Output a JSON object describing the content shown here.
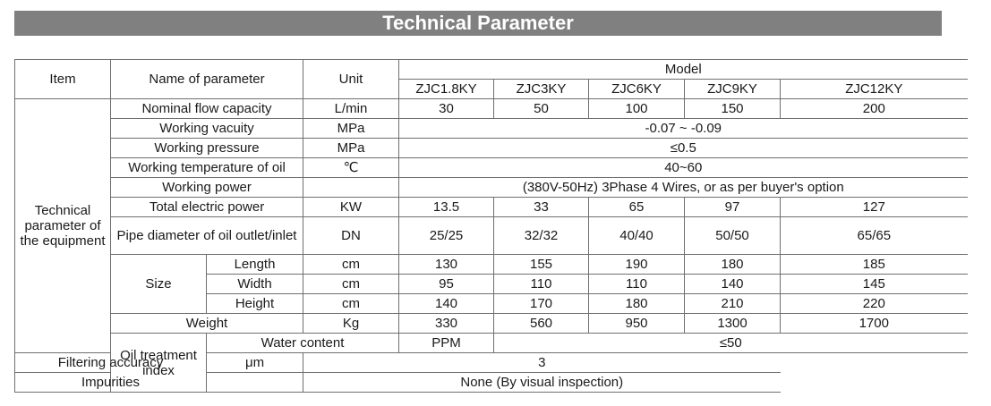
{
  "title": "Technical Parameter",
  "header": {
    "item": "Item",
    "name": "Name of parameter",
    "unit": "Unit",
    "model": "Model",
    "models": [
      "ZJC1.8KY",
      "ZJC3KY",
      "ZJC6KY",
      "ZJC9KY",
      "ZJC12KY"
    ]
  },
  "group_technical": "Technical parameter of the equipment",
  "group_oil": "Oil treatment index",
  "rows": {
    "flow": {
      "name": "Nominal flow capacity",
      "unit": "L/min",
      "values": [
        "30",
        "50",
        "100",
        "150",
        "200"
      ]
    },
    "vacuity": {
      "name": "Working vacuity",
      "unit": "MPa",
      "value": "-0.07 ~ -0.09"
    },
    "pressure": {
      "name": "Working pressure",
      "unit": "MPa",
      "value": "≤0.5"
    },
    "temp": {
      "name": "Working temperature of oil",
      "unit": "℃",
      "value": "40~60"
    },
    "power": {
      "name": "Working power",
      "unit": "",
      "value": "(380V-50Hz) 3Phase 4 Wires, or as per buyer's option"
    },
    "electric": {
      "name": "Total electric power",
      "unit": "KW",
      "values": [
        "13.5",
        "33",
        "65",
        "97",
        "127"
      ]
    },
    "pipe": {
      "name": "Pipe diameter of oil outlet/inlet",
      "unit": "DN",
      "values": [
        "25/25",
        "32/32",
        "40/40",
        "50/50",
        "65/65"
      ]
    },
    "size_label": "Size",
    "length": {
      "name": "Length",
      "unit": "cm",
      "values": [
        "130",
        "155",
        "190",
        "180",
        "185"
      ]
    },
    "width": {
      "name": "Width",
      "unit": "cm",
      "values": [
        "95",
        "110",
        "110",
        "140",
        "145"
      ]
    },
    "height": {
      "name": "Height",
      "unit": "cm",
      "values": [
        "140",
        "170",
        "180",
        "210",
        "220"
      ]
    },
    "weight": {
      "name": "Weight",
      "unit": "Kg",
      "values": [
        "330",
        "560",
        "950",
        "1300",
        "1700"
      ]
    },
    "water": {
      "name": "Water content",
      "unit": "PPM",
      "value": "≤50"
    },
    "filtering": {
      "name": "Filtering accuracy",
      "unit": "μm",
      "value": "3"
    },
    "impurities": {
      "name": "Impurities",
      "unit": "",
      "value": "None (By visual inspection)"
    }
  }
}
